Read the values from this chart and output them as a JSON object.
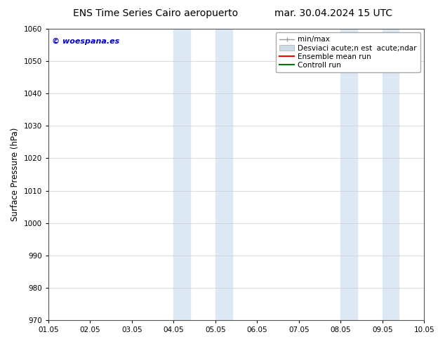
{
  "title_left": "ENS Time Series Cairo aeropuerto",
  "title_right": "mar. 30.04.2024 15 UTC",
  "ylabel": "Surface Pressure (hPa)",
  "watermark": "© woespana.es",
  "watermark_color": "#0000bb",
  "xlim": [
    0,
    9
  ],
  "ylim": [
    970,
    1060
  ],
  "yticks": [
    970,
    980,
    990,
    1000,
    1010,
    1020,
    1030,
    1040,
    1050,
    1060
  ],
  "xtick_labels": [
    "01.05",
    "02.05",
    "03.05",
    "04.05",
    "05.05",
    "06.05",
    "07.05",
    "08.05",
    "09.05",
    "10.05"
  ],
  "shaded_bands": [
    {
      "xmin": 3.0,
      "xmax": 3.4,
      "color": "#dce9f5"
    },
    {
      "xmin": 4.0,
      "xmax": 4.4,
      "color": "#dce9f5"
    },
    {
      "xmin": 7.0,
      "xmax": 7.4,
      "color": "#dce9f5"
    },
    {
      "xmin": 8.0,
      "xmax": 8.4,
      "color": "#dce9f5"
    }
  ],
  "legend_label_minmax": "min/max",
  "legend_label_std": "Desviaci acute;n est  acute;ndar",
  "legend_label_ensemble": "Ensemble mean run",
  "legend_label_control": "Controll run",
  "legend_color_minmax": "#999999",
  "legend_color_std": "#ccdde8",
  "legend_color_ensemble": "#ff0000",
  "legend_color_control": "#007700",
  "bg_color": "#ffffff",
  "grid_color": "#cccccc",
  "title_fontsize": 10,
  "tick_fontsize": 7.5,
  "ylabel_fontsize": 8.5,
  "legend_fontsize": 7.5
}
